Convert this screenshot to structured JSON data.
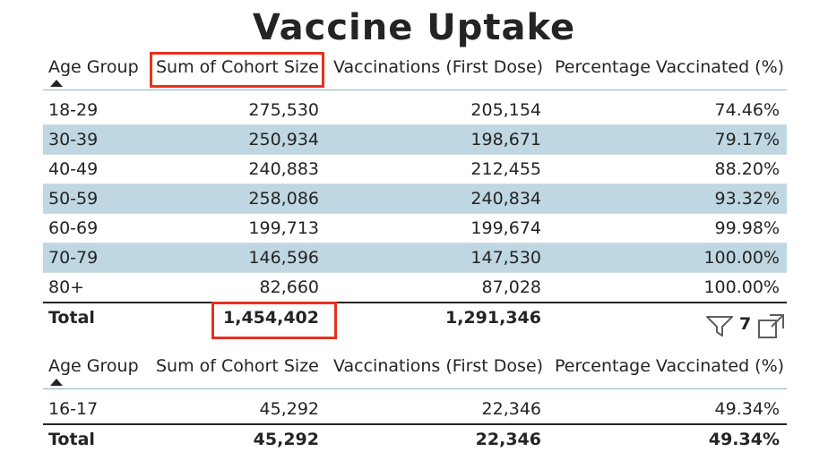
{
  "title": "Vaccine Uptake",
  "table1": {
    "headers": [
      "Age Group",
      "Sum of Cohort Size",
      "Vaccinations (First Dose)",
      "Percentage Vaccinated (%)"
    ],
    "rows": [
      [
        "18-29",
        "275,530",
        "205,154",
        "74.46%"
      ],
      [
        "30-39",
        "250,934",
        "198,671",
        "79.17%"
      ],
      [
        "40-49",
        "240,883",
        "212,455",
        "88.20%"
      ],
      [
        "50-59",
        "258,086",
        "240,834",
        "93.32%"
      ],
      [
        "60-69",
        "199,713",
        "199,674",
        "99.98%"
      ],
      [
        "70-79",
        "146,596",
        "147,530",
        "100.00%"
      ],
      [
        "80+",
        "82,660",
        "87,028",
        "100.00%"
      ]
    ],
    "total": [
      "Total",
      "1,454,402",
      "1,291,346",
      ""
    ],
    "sort": "ascending by Age Group"
  },
  "table2": {
    "headers": [
      "Age Group",
      "Sum of Cohort Size",
      "Vaccinations (First Dose)",
      "Percentage Vaccinated (%)"
    ],
    "rows": [
      [
        "16-17",
        "45,292",
        "22,346",
        "49.34%"
      ]
    ],
    "total": [
      "Total",
      "45,292",
      "22,346",
      "49.34%"
    ]
  },
  "visual_header": {
    "filter_icon": "filter-icon",
    "filter_count": "7",
    "focus_icon": "focus-mode-icon"
  },
  "colors": {
    "highlight": "#e8311f",
    "band": "#bfd7e2",
    "header_line": "#8fb5c6"
  }
}
